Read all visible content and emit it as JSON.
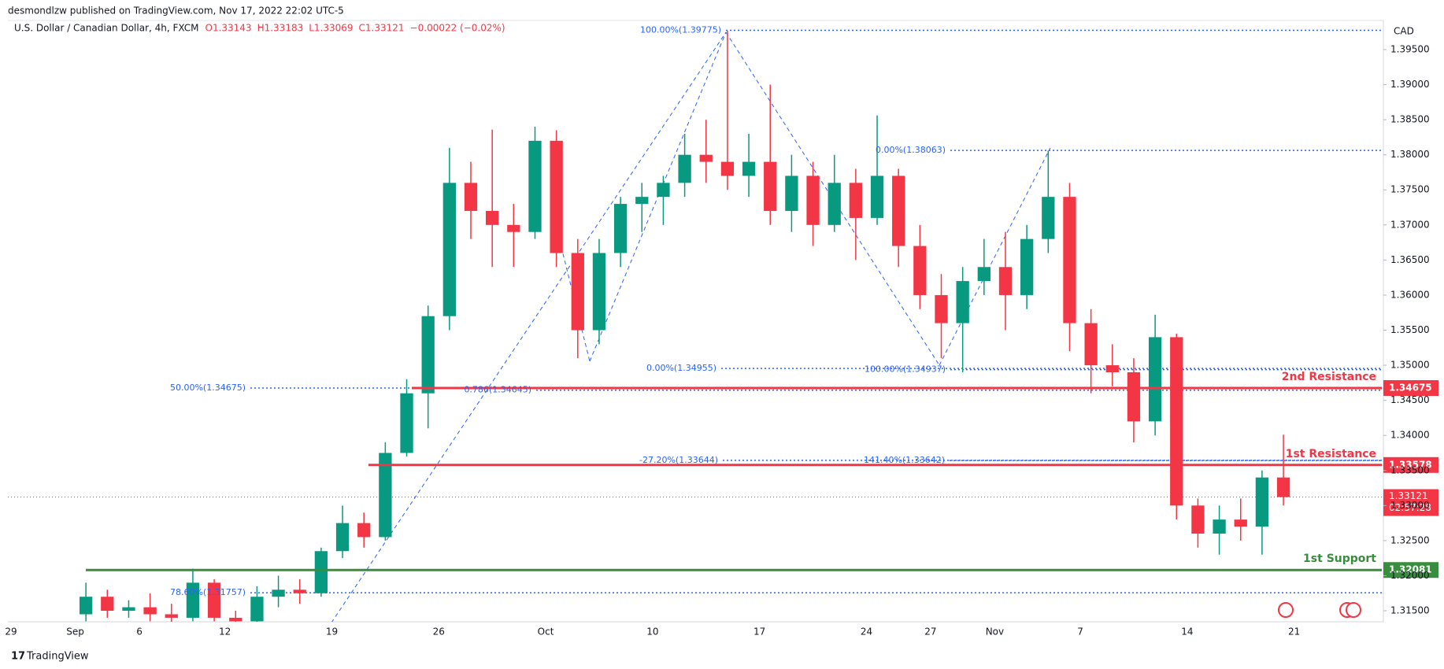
{
  "header": {
    "publisher": "desmondlzw published on TradingView.com, Nov 17, 2022 22:02 UTC-5",
    "symbol": "U.S. Dollar / Canadian Dollar, 4h, FXCM",
    "ohlc": [
      "O1.33143",
      "H1.33183",
      "L1.33069",
      "C1.33121",
      "−0.00022 (−0.02%)"
    ]
  },
  "chart_data": {
    "type": "candlestick",
    "currency": "CAD",
    "categories": [
      "29",
      null,
      null,
      "Sep",
      null,
      null,
      "6",
      null,
      null,
      null,
      "12",
      null,
      null,
      null,
      null,
      "19",
      null,
      null,
      null,
      null,
      "26",
      null,
      null,
      null,
      null,
      "Oct",
      null,
      null,
      null,
      null,
      "10",
      null,
      null,
      null,
      null,
      "17",
      null,
      null,
      null,
      null,
      "24",
      null,
      null,
      "27",
      null,
      null,
      "Nov",
      null,
      null,
      null,
      "7",
      null,
      null,
      null,
      null,
      "14",
      null,
      null,
      null,
      null,
      "21"
    ],
    "open": [
      null,
      null,
      null,
      1.3145,
      1.317,
      1.315,
      1.3155,
      1.3145,
      1.314,
      1.319,
      1.314,
      1.3135,
      1.317,
      1.318,
      1.3175,
      1.3235,
      1.3275,
      1.3255,
      1.3375,
      1.346,
      1.357,
      1.376,
      1.372,
      1.37,
      1.369,
      1.382,
      1.366,
      1.355,
      1.366,
      1.373,
      1.374,
      1.376,
      1.38,
      1.379,
      1.377,
      1.379,
      1.372,
      1.377,
      1.37,
      1.376,
      1.371,
      1.377,
      1.367,
      1.36,
      1.356,
      1.362,
      1.364,
      1.36,
      1.368,
      1.374,
      1.356,
      1.35,
      1.349,
      1.342,
      1.354,
      1.33,
      1.326,
      1.328,
      1.327,
      1.334,
      null
    ],
    "high": [
      null,
      null,
      null,
      1.319,
      1.318,
      1.3165,
      1.3175,
      1.316,
      1.321,
      1.3195,
      1.315,
      1.3185,
      1.32,
      1.3195,
      1.324,
      1.33,
      1.329,
      1.339,
      1.348,
      1.3585,
      1.381,
      1.379,
      1.3836,
      1.373,
      1.384,
      1.3835,
      1.368,
      1.368,
      1.374,
      1.376,
      1.377,
      1.383,
      1.385,
      1.3977,
      1.383,
      1.39,
      1.38,
      1.379,
      1.38,
      1.378,
      1.3856,
      1.378,
      1.37,
      1.363,
      1.364,
      1.368,
      1.369,
      1.37,
      1.3806,
      1.376,
      1.358,
      1.353,
      1.351,
      1.3572,
      1.3545,
      1.331,
      1.33,
      1.331,
      1.335,
      1.3401,
      null
    ],
    "low": [
      null,
      null,
      null,
      1.3135,
      1.314,
      1.314,
      1.3135,
      1.313,
      1.3135,
      1.3135,
      1.3125,
      1.313,
      1.3155,
      1.316,
      1.317,
      1.3225,
      1.324,
      1.325,
      1.337,
      1.341,
      1.355,
      1.368,
      1.364,
      1.364,
      1.368,
      1.364,
      1.351,
      1.353,
      1.364,
      1.369,
      1.37,
      1.374,
      1.376,
      1.375,
      1.374,
      1.37,
      1.369,
      1.367,
      1.369,
      1.365,
      1.37,
      1.364,
      1.358,
      1.351,
      1.349,
      1.36,
      1.355,
      1.358,
      1.366,
      1.352,
      1.346,
      1.347,
      1.339,
      1.34,
      1.328,
      1.324,
      1.323,
      1.325,
      1.323,
      1.33,
      null
    ],
    "close": [
      null,
      null,
      null,
      1.317,
      1.315,
      1.3155,
      1.3145,
      1.314,
      1.319,
      1.314,
      1.3135,
      1.317,
      1.318,
      1.3175,
      1.3235,
      1.3275,
      1.3255,
      1.3375,
      1.346,
      1.357,
      1.376,
      1.372,
      1.37,
      1.369,
      1.382,
      1.366,
      1.355,
      1.366,
      1.373,
      1.374,
      1.376,
      1.38,
      1.379,
      1.377,
      1.379,
      1.372,
      1.377,
      1.37,
      1.376,
      1.371,
      1.377,
      1.367,
      1.36,
      1.356,
      1.362,
      1.364,
      1.36,
      1.368,
      1.374,
      1.356,
      1.35,
      1.349,
      1.342,
      1.354,
      1.33,
      1.326,
      1.328,
      1.327,
      1.334,
      1.33121,
      null
    ],
    "up_color": "#089981",
    "down_color": "#f23645",
    "ylim": [
      1.31343,
      1.39915
    ],
    "yticks": [
      {
        "value": 1.315,
        "label": "1.31500"
      },
      {
        "value": 1.32,
        "label": "1.32000"
      },
      {
        "value": 1.325,
        "label": "1.32500"
      },
      {
        "value": 1.33,
        "label": "1.33000"
      },
      {
        "value": 1.335,
        "label": "1.33500"
      },
      {
        "value": 1.34,
        "label": "1.34000"
      },
      {
        "value": 1.345,
        "label": "1.34500"
      },
      {
        "value": 1.35,
        "label": "1.35000"
      },
      {
        "value": 1.355,
        "label": "1.35500"
      },
      {
        "value": 1.36,
        "label": "1.36000"
      },
      {
        "value": 1.365,
        "label": "1.36500"
      },
      {
        "value": 1.37,
        "label": "1.37000"
      },
      {
        "value": 1.375,
        "label": "1.37500"
      },
      {
        "value": 1.38,
        "label": "1.38000"
      },
      {
        "value": 1.385,
        "label": "1.38500"
      },
      {
        "value": 1.39,
        "label": "1.39000"
      },
      {
        "value": 1.395,
        "label": "1.39500"
      }
    ],
    "levels": [
      {
        "name": "2nd Resistance",
        "value": 1.34675,
        "color": "#f23645"
      },
      {
        "name": "1st Resistance",
        "value": 1.33578,
        "color": "#f23645"
      },
      {
        "name": "1st Support",
        "value": 1.32081,
        "color": "#388e3c"
      }
    ],
    "last_price": {
      "value": 1.33121,
      "countdown": "02:57:28",
      "color": "#f23645"
    },
    "fib_color": "#2962ff",
    "fib_levels": [
      {
        "label": "100.00%(1.39775)",
        "value": 1.39775
      },
      {
        "label": "0.00%(1.38063)",
        "value": 1.38063
      },
      {
        "label": "0.00%(1.34955)",
        "value": 1.34955
      },
      {
        "label": "100.00%(1.34937)",
        "value": 1.34937
      },
      {
        "label": "50.00%(1.34675)",
        "value": 1.34675
      },
      {
        "label": "0.786(1.34645)",
        "value": 1.34645
      },
      {
        "label": "-27.20%(1.33644)",
        "value": 1.33644
      },
      {
        "label": "141.40%(1.33642)",
        "value": 1.33642
      },
      {
        "label": "78.60%(1.31757)",
        "value": 1.31757
      }
    ]
  },
  "footer": "TradingView"
}
